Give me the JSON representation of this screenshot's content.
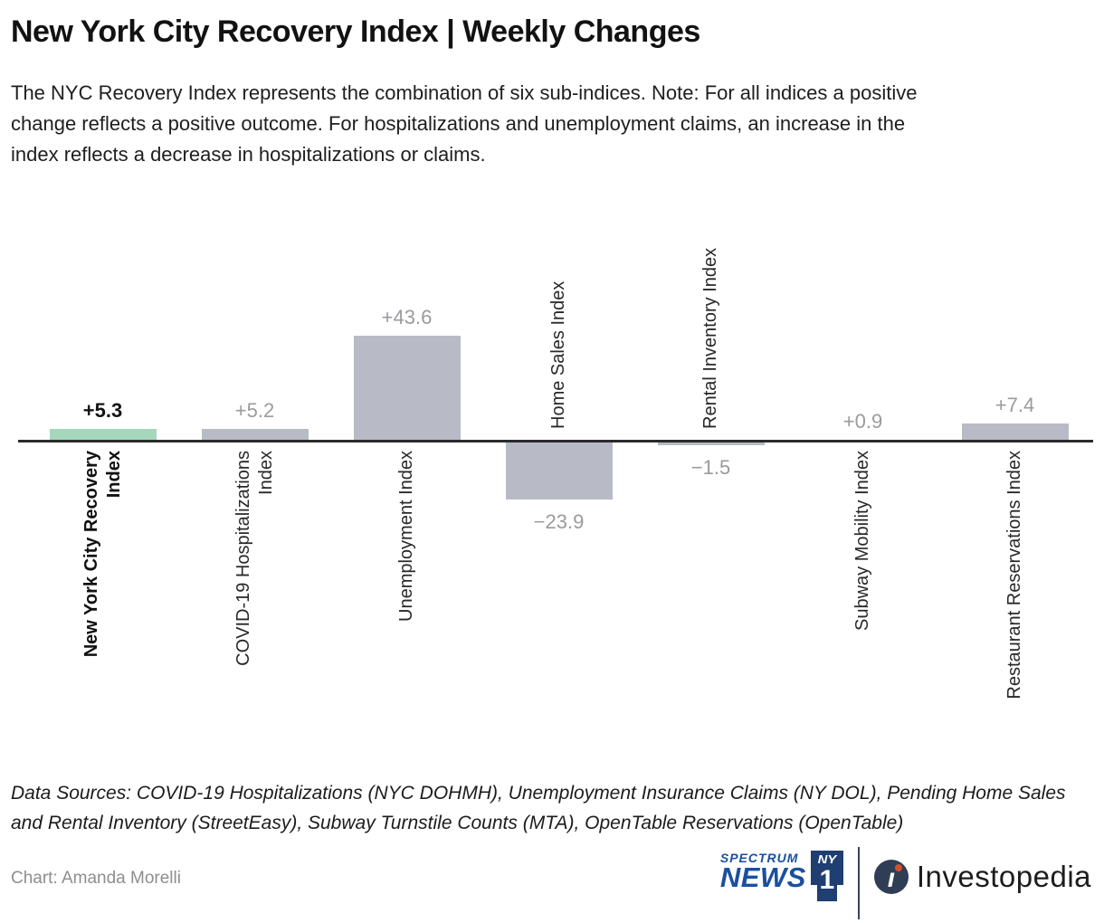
{
  "header": {
    "title": "New York City Recovery Index | Weekly Changes",
    "subtitle": "The NYC Recovery Index represents the combination of six sub-indices. Note: For all indices a positive\nchange reflects a positive outcome. For hospitalizations and unemployment claims, an increase in the\nindex reflects a decrease in hospitalizations or claims."
  },
  "chart_data": {
    "type": "bar",
    "title": "New York City Recovery Index | Weekly Changes",
    "categories": [
      "New York City Recovery\nIndex",
      "COVID-19 Hospitalizations\nIndex",
      "Unemployment Index",
      "Home Sales Index",
      "Rental Inventory Index",
      "Subway Mobility Index",
      "Restaurant Reservations Index"
    ],
    "values": [
      5.3,
      5.2,
      43.6,
      -23.9,
      -1.5,
      0.9,
      7.4
    ],
    "value_labels": [
      "+5.3",
      "+5.2",
      "+43.6",
      "−23.9",
      "−1.5",
      "+0.9",
      "+7.4"
    ],
    "highlight_index": 0,
    "highlight_color": "#a4d7bc",
    "bar_color": "#b8bac6",
    "axis_color": "#2b2b2b",
    "value_label_color": "#9a9aa0",
    "highlight_value_label_color": "#141414",
    "baseline": 0,
    "grid": false,
    "legend": "none",
    "category_label_rotation": -90,
    "ylim": [
      -30,
      50
    ]
  },
  "footer": {
    "data_sources": "Data Sources: COVID-19 Hospitalizations (NYC DOHMH), Unemployment Insurance Claims (NY DOL), Pending Home Sales\nand Rental Inventory (StreetEasy), Subway Turnstile Counts (MTA), OpenTable Reservations (OpenTable)",
    "credit": "Chart: Amanda Morelli",
    "logos": {
      "spectrum_small": "SPECTRUM",
      "spectrum_large": "NEWS",
      "ny1_top": "NY",
      "ny1_bottom": "1",
      "investopedia": "Investopedia"
    }
  }
}
